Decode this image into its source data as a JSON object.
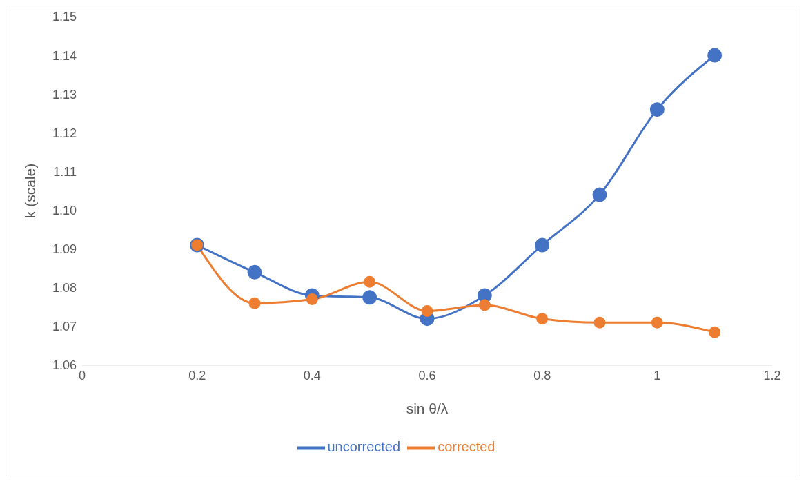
{
  "chart_data": {
    "type": "line",
    "xlabel": "sin θ/λ",
    "ylabel": "k (scale)",
    "x": [
      0.2,
      0.3,
      0.4,
      0.5,
      0.6,
      0.7,
      0.8,
      0.9,
      1.0,
      1.1
    ],
    "series": [
      {
        "name": "uncorrected",
        "color": "#4472c4",
        "values": [
          1.091,
          1.084,
          1.078,
          1.0775,
          1.072,
          1.078,
          1.091,
          1.104,
          1.126,
          1.14
        ]
      },
      {
        "name": "corrected",
        "color": "#ed7d31",
        "values": [
          1.091,
          1.076,
          1.077,
          1.0815,
          1.074,
          1.0755,
          1.072,
          1.071,
          1.071,
          1.0685
        ]
      }
    ],
    "xlim": [
      0,
      1.2
    ],
    "xticks": [
      0,
      0.2,
      0.4,
      0.6,
      0.8,
      1,
      1.2
    ],
    "ylim": [
      1.06,
      1.15
    ],
    "yticks": [
      {
        "value": 1.06,
        "label": "1.06"
      },
      {
        "value": 1.07,
        "label": "1.07"
      },
      {
        "value": 1.08,
        "label": "1.08"
      },
      {
        "value": 1.09,
        "label": "1.09"
      },
      {
        "value": 1.1,
        "label": "1.10"
      },
      {
        "value": 1.11,
        "label": "1.11"
      },
      {
        "value": 1.12,
        "label": "1.12"
      },
      {
        "value": 1.13,
        "label": "1.13"
      },
      {
        "value": 1.14,
        "label": "1.14"
      },
      {
        "value": 1.15,
        "label": "1.15"
      }
    ],
    "grid": false,
    "legend": "bottom",
    "marker": "circle",
    "line_style": "solid"
  }
}
